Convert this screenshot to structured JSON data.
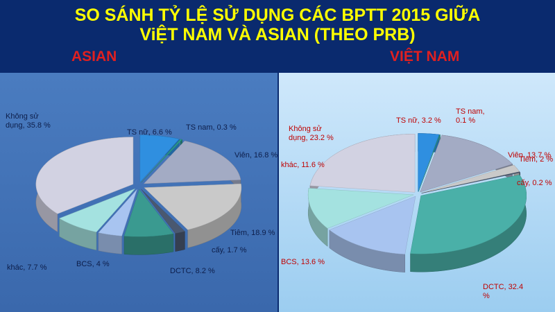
{
  "title": "SO SÁNH TỶ LỆ SỬ DỤNG CÁC BPTT 2015 GIỮA\nViỆT NAM VÀ ASIAN (THEO PRB)",
  "chart_data": [
    {
      "type": "pie",
      "title": "ASIAN",
      "values": [
        6.6,
        0.3,
        16.8,
        18.9,
        1.7,
        8.2,
        4,
        7.7,
        35.8
      ],
      "value_labels": [
        "TS nữ, 6.6 %",
        "TS nam, 0.3 %",
        "Viên, 16.8 %",
        "Tiêm, 18.9 %",
        "cấy, 1.7 %",
        "DCTC, 8.2 %",
        "BCS, 4 %",
        "khác, 7.7 %",
        "Không sử\ndụng, 35.8 %"
      ],
      "colors": [
        "#2f8fe0",
        "#2a9a8a",
        "#a3abc4",
        "#c9c9c9",
        "#4a5870",
        "#3a9a90",
        "#a8c4f0",
        "#a4e2e0",
        "#d2d2e2"
      ]
    },
    {
      "type": "pie",
      "title": "VIỆT NAM",
      "values": [
        3.2,
        0.1,
        13.7,
        2,
        0.2,
        32.4,
        13.6,
        11.6,
        23.2
      ],
      "value_labels": [
        "TS nữ, 3.2 %",
        "TS nam,\n0.1 %",
        "Viên, 13.7 %",
        "Tiêm, 2 %",
        "cấy, 0.2 %",
        "DCTC, 32.4\n%",
        "BCS, 13.6 %",
        "khác, 11.6 %",
        "Không sử\ndụng, 23.2 %"
      ],
      "colors": [
        "#2f8fe0",
        "#2a9a8a",
        "#a3abc4",
        "#c9c9c9",
        "#4a5870",
        "#4ab0a8",
        "#a8c4f0",
        "#a4e2e0",
        "#d2d2e2"
      ]
    }
  ]
}
